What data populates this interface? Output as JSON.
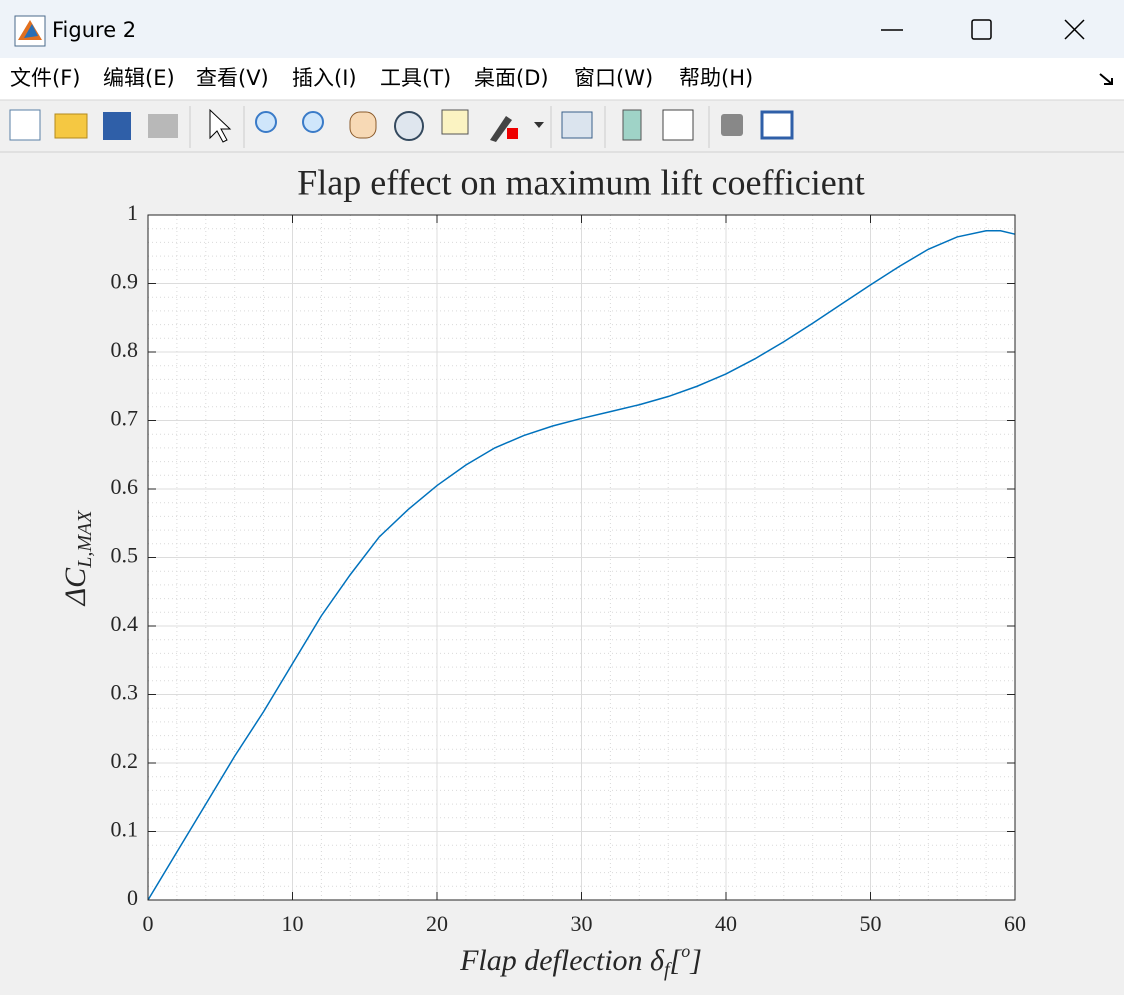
{
  "window": {
    "title": "Figure 2",
    "menu": [
      "文件(F)",
      "编辑(E)",
      "查看(V)",
      "插入(I)",
      "工具(T)",
      "桌面(D)",
      "窗口(W)",
      "帮助(H)"
    ]
  },
  "chart_data": {
    "type": "line",
    "title": "Flap effect on maximum lift coefficient",
    "xlabel_parts": [
      {
        "text": "Flap deflection δ"
      },
      {
        "text": "f",
        "sub": true
      },
      {
        "text": "["
      },
      {
        "text": "o",
        "sup": true
      },
      {
        "text": "]"
      }
    ],
    "ylabel_parts": [
      {
        "text": "ΔC"
      },
      {
        "text": "L,MAX",
        "sub": true
      }
    ],
    "x": [
      0,
      2,
      4,
      6,
      8,
      10,
      12,
      14,
      16,
      18,
      20,
      22,
      24,
      26,
      28,
      30,
      32,
      34,
      36,
      38,
      40,
      42,
      44,
      46,
      48,
      50,
      52,
      54,
      56,
      58,
      59,
      60
    ],
    "values": [
      0,
      0.07,
      0.14,
      0.21,
      0.275,
      0.345,
      0.415,
      0.475,
      0.53,
      0.57,
      0.605,
      0.635,
      0.66,
      0.678,
      0.692,
      0.703,
      0.713,
      0.723,
      0.735,
      0.75,
      0.768,
      0.79,
      0.815,
      0.842,
      0.87,
      0.898,
      0.925,
      0.95,
      0.968,
      0.977,
      0.977,
      0.972
    ],
    "color": "#0072bd",
    "xlim": [
      0,
      60
    ],
    "xticks": [
      0,
      10,
      20,
      30,
      40,
      50,
      60
    ],
    "ylim": [
      0,
      1
    ],
    "yticks": [
      0,
      0.1,
      0.2,
      0.3,
      0.4,
      0.5,
      0.6,
      0.7,
      0.8,
      0.9,
      1
    ],
    "grid": true,
    "minor_grid": true,
    "xminorticks": [
      0,
      2,
      4,
      6,
      8,
      10,
      12,
      14,
      16,
      18,
      20,
      22,
      24,
      26,
      28,
      30,
      32,
      34,
      36,
      38,
      40,
      42,
      44,
      46,
      48,
      50,
      52,
      54,
      56,
      58,
      60
    ],
    "yminorticks": [
      0,
      0.02,
      0.04,
      0.06,
      0.08,
      0.1,
      0.12,
      0.14,
      0.16,
      0.18,
      0.2,
      0.22,
      0.24,
      0.26,
      0.28,
      0.3,
      0.32,
      0.34,
      0.36,
      0.38,
      0.4,
      0.42,
      0.44,
      0.46,
      0.48,
      0.5,
      0.52,
      0.54,
      0.56,
      0.58,
      0.6,
      0.62,
      0.64,
      0.66,
      0.68,
      0.7,
      0.72,
      0.74,
      0.76,
      0.78,
      0.8,
      0.82,
      0.84,
      0.86,
      0.88,
      0.9,
      0.92,
      0.94,
      0.96,
      0.98,
      1
    ]
  }
}
